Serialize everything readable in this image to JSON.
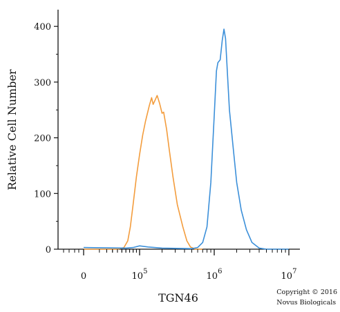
{
  "chart_data": {
    "type": "line",
    "xlabel": "TGN46",
    "ylabel": "Relative Cell Number",
    "xscale": "biexponential",
    "xticks": [
      {
        "label": "0",
        "exp": ""
      },
      {
        "label": "10",
        "exp": "5"
      },
      {
        "label": "10",
        "exp": "6"
      },
      {
        "label": "10",
        "exp": "7"
      }
    ],
    "ylim": [
      0,
      430
    ],
    "yticks": [
      0,
      100,
      200,
      300,
      400
    ],
    "grid": false,
    "series": [
      {
        "color": "#f39c3c",
        "points": [
          [
            0,
            0
          ],
          [
            20000,
            0
          ],
          [
            40000,
            0
          ],
          [
            55000,
            3
          ],
          [
            65000,
            15
          ],
          [
            72000,
            40
          ],
          [
            80000,
            80
          ],
          [
            90000,
            130
          ],
          [
            100000,
            170
          ],
          [
            110000,
            205
          ],
          [
            120000,
            230
          ],
          [
            135000,
            258
          ],
          [
            145000,
            272
          ],
          [
            152000,
            260
          ],
          [
            162000,
            268
          ],
          [
            172000,
            276
          ],
          [
            185000,
            262
          ],
          [
            200000,
            244
          ],
          [
            210000,
            246
          ],
          [
            230000,
            215
          ],
          [
            250000,
            178
          ],
          [
            280000,
            130
          ],
          [
            320000,
            80
          ],
          [
            380000,
            40
          ],
          [
            430000,
            15
          ],
          [
            480000,
            4
          ],
          [
            560000,
            0
          ],
          [
            700000,
            0
          ]
        ]
      },
      {
        "color": "#3b8fd9",
        "points": [
          [
            0,
            3
          ],
          [
            60000,
            2
          ],
          [
            80000,
            3
          ],
          [
            100000,
            6
          ],
          [
            130000,
            4
          ],
          [
            200000,
            2
          ],
          [
            500000,
            1
          ],
          [
            600000,
            3
          ],
          [
            700000,
            12
          ],
          [
            800000,
            40
          ],
          [
            900000,
            120
          ],
          [
            1000000,
            240
          ],
          [
            1070000,
            320
          ],
          [
            1120000,
            335
          ],
          [
            1200000,
            340
          ],
          [
            1280000,
            375
          ],
          [
            1350000,
            395
          ],
          [
            1420000,
            378
          ],
          [
            1500000,
            318
          ],
          [
            1600000,
            250
          ],
          [
            1800000,
            180
          ],
          [
            2000000,
            120
          ],
          [
            2300000,
            70
          ],
          [
            2700000,
            35
          ],
          [
            3200000,
            12
          ],
          [
            4000000,
            2
          ],
          [
            5000000,
            0
          ],
          [
            10000000,
            0
          ]
        ]
      }
    ]
  },
  "copyright": {
    "line1": "Copyright © 2016",
    "line2": "Novus Biologicals"
  }
}
